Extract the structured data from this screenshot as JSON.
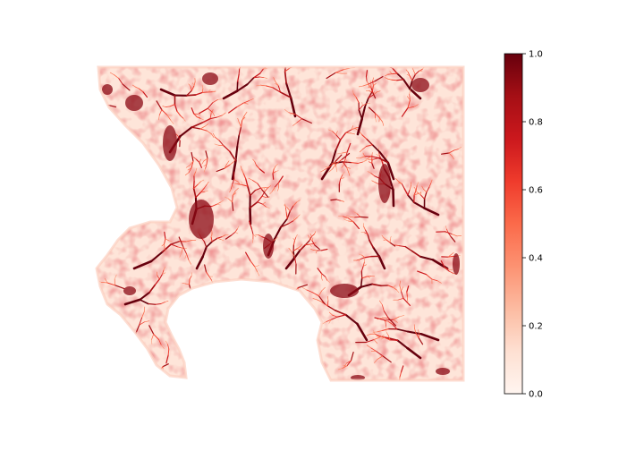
{
  "chart_data": {
    "type": "heatmap",
    "title": "",
    "xlabel": "",
    "ylabel": "",
    "axes_visible": false,
    "colormap": "Reds",
    "colorbar": {
      "position": "right",
      "range": [
        0.0,
        1.0
      ],
      "ticks": [
        {
          "value": 0.0,
          "label": "0.0"
        },
        {
          "value": 0.2,
          "label": "0.2"
        },
        {
          "value": 0.4,
          "label": "0.4"
        },
        {
          "value": 0.6,
          "label": "0.6"
        },
        {
          "value": 0.8,
          "label": "0.8"
        },
        {
          "value": 1.0,
          "label": "1.0"
        }
      ]
    },
    "colors": {
      "low": "#fff5f0",
      "mid_low": "#fcbba1",
      "mid": "#fb6a4a",
      "mid_high": "#cb181d",
      "high": "#67000d"
    }
  }
}
